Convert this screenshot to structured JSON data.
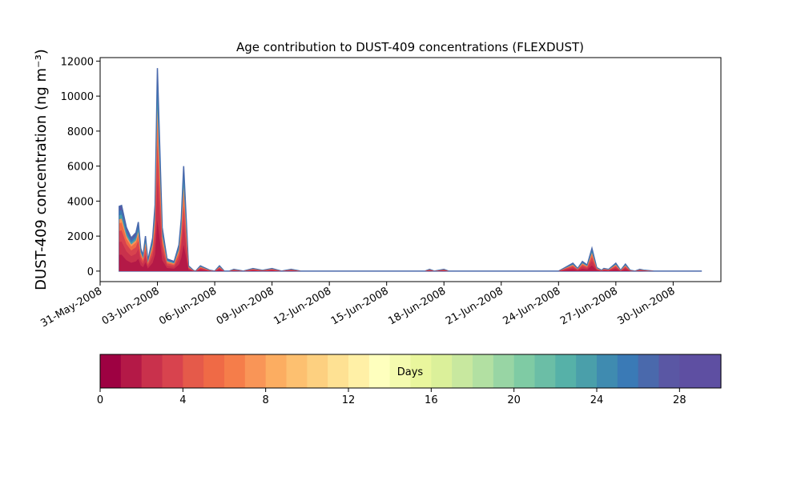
{
  "chart_data": {
    "type": "area",
    "title": "Age contribution to DUST-409 concentrations (FLEXDUST)",
    "ylabel": "DUST-409 concentration (ng m⁻³)",
    "xlabel": "",
    "ylim": [
      -600,
      12200
    ],
    "xlim": [
      "2008-05-31T00:00",
      "2008-07-02T12:00"
    ],
    "y_ticks": [
      0,
      2000,
      4000,
      6000,
      8000,
      10000,
      12000
    ],
    "x_tick_labels": [
      "31-May-2008",
      "03-Jun-2008",
      "06-Jun-2008",
      "09-Jun-2008",
      "12-Jun-2008",
      "15-Jun-2008",
      "18-Jun-2008",
      "21-Jun-2008",
      "24-Jun-2008",
      "27-Jun-2008",
      "30-Jun-2008"
    ],
    "x_tick_dates": [
      "2008-05-31",
      "2008-06-03",
      "2008-06-06",
      "2008-06-09",
      "2008-06-12",
      "2008-06-15",
      "2008-06-18",
      "2008-06-21",
      "2008-06-24",
      "2008-06-27",
      "2008-06-30"
    ],
    "total_series": {
      "x": [
        "2008-06-01T00:00",
        "2008-06-01T03:00",
        "2008-06-01T09:00",
        "2008-06-01T15:00",
        "2008-06-01T21:00",
        "2008-06-02T00:00",
        "2008-06-02T03:00",
        "2008-06-02T06:00",
        "2008-06-02T09:00",
        "2008-06-02T12:00",
        "2008-06-02T18:00",
        "2008-06-02T21:00",
        "2008-06-03T00:00",
        "2008-06-03T06:00",
        "2008-06-03T12:00",
        "2008-06-03T21:00",
        "2008-06-04T03:00",
        "2008-06-04T06:00",
        "2008-06-04T09:00",
        "2008-06-04T15:00",
        "2008-06-04T21:00",
        "2008-06-05T00:00",
        "2008-06-05T06:00",
        "2008-06-05T18:00",
        "2008-06-06T00:00",
        "2008-06-06T06:00",
        "2008-06-06T12:00",
        "2008-06-06T18:00",
        "2008-06-07T00:00",
        "2008-06-07T06:00",
        "2008-06-07T12:00",
        "2008-06-08T00:00",
        "2008-06-08T12:00",
        "2008-06-09T00:00",
        "2008-06-09T12:00",
        "2008-06-10T00:00",
        "2008-06-10T12:00",
        "2008-06-11T00:00",
        "2008-06-11T12:00",
        "2008-06-12T00:00",
        "2008-06-13T00:00",
        "2008-06-14T00:00",
        "2008-06-15T00:00",
        "2008-06-16T00:00",
        "2008-06-17T00:00",
        "2008-06-17T06:00",
        "2008-06-17T12:00",
        "2008-06-18T00:00",
        "2008-06-18T06:00",
        "2008-06-18T12:00",
        "2008-06-19T00:00",
        "2008-06-20T00:00",
        "2008-06-21T00:00",
        "2008-06-22T00:00",
        "2008-06-23T00:00",
        "2008-06-24T00:00",
        "2008-06-24T06:00",
        "2008-06-24T18:00",
        "2008-06-25T00:00",
        "2008-06-25T06:00",
        "2008-06-25T12:00",
        "2008-06-25T18:00",
        "2008-06-26T00:00",
        "2008-06-26T06:00",
        "2008-06-26T09:00",
        "2008-06-26T15:00",
        "2008-06-27T00:00",
        "2008-06-27T06:00",
        "2008-06-27T12:00",
        "2008-06-27T18:00",
        "2008-06-28T00:00",
        "2008-06-28T06:00",
        "2008-06-28T12:00",
        "2008-06-29T00:00",
        "2008-06-29T12:00",
        "2008-06-30T00:00",
        "2008-06-30T12:00",
        "2008-07-01T00:00",
        "2008-07-01T12:00"
      ],
      "values": [
        3700,
        3750,
        2500,
        1900,
        2200,
        2800,
        1300,
        900,
        2000,
        600,
        1900,
        3800,
        11600,
        2500,
        700,
        550,
        1500,
        3000,
        6000,
        300,
        50,
        0,
        300,
        50,
        0,
        300,
        0,
        0,
        100,
        50,
        0,
        150,
        50,
        150,
        0,
        100,
        0,
        0,
        0,
        0,
        0,
        0,
        0,
        0,
        0,
        100,
        0,
        100,
        0,
        0,
        0,
        0,
        0,
        0,
        0,
        0,
        150,
        450,
        150,
        550,
        350,
        1300,
        200,
        50,
        150,
        100,
        450,
        50,
        400,
        50,
        0,
        100,
        50,
        0,
        0,
        0,
        0,
        0,
        0
      ]
    },
    "colorbar": {
      "label": "Days",
      "ticks": [
        0,
        4,
        8,
        12,
        16,
        20,
        24,
        28
      ],
      "range": [
        0,
        30
      ],
      "colors": [
        "#9e0142",
        "#b41947",
        "#c9314c",
        "#d8434e",
        "#e55a4a",
        "#ef6a46",
        "#f57d4a",
        "#f99557",
        "#fcad61",
        "#fdc070",
        "#fdd080",
        "#fee193",
        "#fff0a6",
        "#feffbe",
        "#f4fbaf",
        "#e9f69d",
        "#dbf09a",
        "#c8e89f",
        "#b2e0a2",
        "#98d5a4",
        "#7fcba4",
        "#6bbea6",
        "#56b1a8",
        "#4a9faa",
        "#3f8bb0",
        "#3a7ab6",
        "#4a69ac",
        "#5a57a4",
        "#5e4fa2",
        "#5e4fa2"
      ]
    }
  }
}
